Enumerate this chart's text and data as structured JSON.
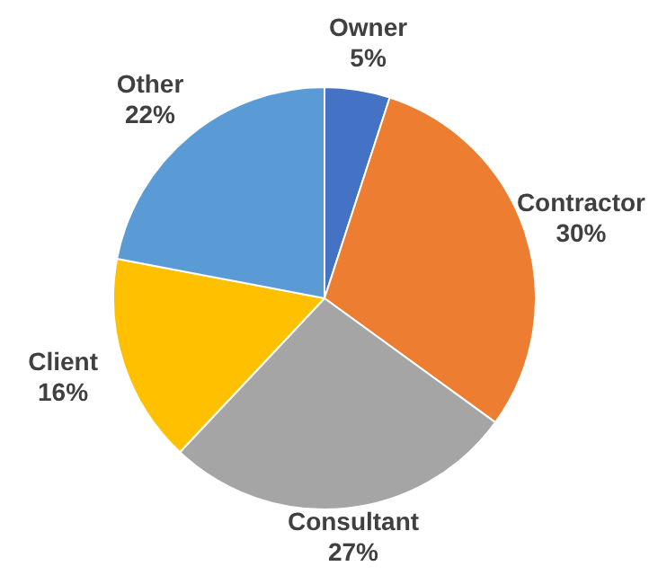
{
  "chart_data": {
    "type": "pie",
    "categories": [
      "Owner",
      "Contractor",
      "Consultant",
      "Client",
      "Other"
    ],
    "values": [
      5,
      30,
      27,
      16,
      22
    ],
    "colors": [
      "#4472c4",
      "#ed7d31",
      "#a5a5a5",
      "#ffc000",
      "#5b9bd5"
    ],
    "value_labels": [
      "5%",
      "30%",
      "27%",
      "16%",
      "22%"
    ],
    "legend": false
  }
}
